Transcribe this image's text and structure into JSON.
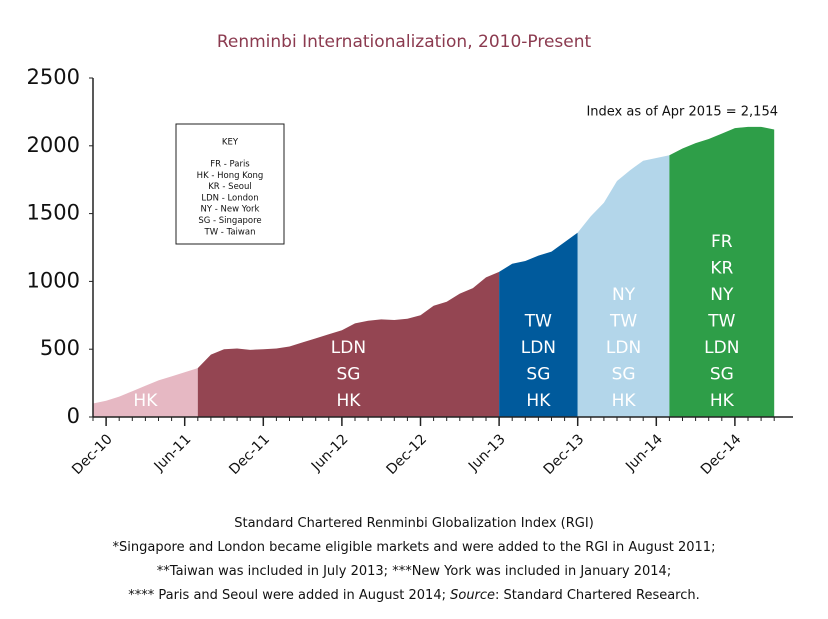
{
  "chart_data": {
    "type": "area",
    "title": "Renminbi Internationalization, 2010-Present",
    "annotation": "Index as of Apr 2015 = 2,154",
    "x": [
      "Nov-10",
      "Dec-10",
      "Jan-11",
      "Feb-11",
      "Mar-11",
      "Apr-11",
      "May-11",
      "Jun-11",
      "Jul-11",
      "Aug-11",
      "Sep-11",
      "Oct-11",
      "Nov-11",
      "Dec-11",
      "Jan-12",
      "Feb-12",
      "Mar-12",
      "Apr-12",
      "May-12",
      "Jun-12",
      "Jul-12",
      "Aug-12",
      "Sep-12",
      "Oct-12",
      "Nov-12",
      "Dec-12",
      "Jan-13",
      "Feb-13",
      "Mar-13",
      "Apr-13",
      "May-13",
      "Jun-13",
      "Jul-13",
      "Aug-13",
      "Sep-13",
      "Oct-13",
      "Nov-13",
      "Dec-13",
      "Jan-14",
      "Feb-14",
      "Mar-14",
      "Apr-14",
      "May-14",
      "Jun-14",
      "Jul-14",
      "Aug-14",
      "Sep-14",
      "Oct-14",
      "Nov-14",
      "Dec-14",
      "Jan-15",
      "Feb-15",
      "Mar-15"
    ],
    "xticks": [
      "Dec-10",
      "Jun-11",
      "Dec-11",
      "Jun-12",
      "Dec-12",
      "Jun-13",
      "Dec-13",
      "Jun-14",
      "Dec-14"
    ],
    "ylim": [
      0,
      2500
    ],
    "yticks": [
      0,
      500,
      1000,
      1500,
      2000,
      2500
    ],
    "grid": false,
    "series": [
      {
        "color": "#e6b8c3",
        "labels": [
          "HK"
        ],
        "values": [
          100,
          120,
          150,
          190,
          230,
          270,
          300,
          330,
          360,
          null,
          null,
          null,
          null,
          null,
          null,
          null,
          null,
          null,
          null,
          null,
          null,
          null,
          null,
          null,
          null,
          null,
          null,
          null,
          null,
          null,
          null,
          null,
          null,
          null,
          null,
          null,
          null,
          null,
          null,
          null,
          null,
          null,
          null,
          null,
          null,
          null,
          null,
          null,
          null,
          null,
          null,
          null,
          null
        ]
      },
      {
        "color": "#944552",
        "labels": [
          "LDN",
          "SG",
          "HK"
        ],
        "values": [
          null,
          null,
          null,
          null,
          null,
          null,
          null,
          null,
          360,
          460,
          500,
          505,
          495,
          500,
          505,
          520,
          550,
          580,
          610,
          640,
          690,
          710,
          720,
          715,
          725,
          750,
          820,
          850,
          910,
          950,
          1030,
          1070,
          null,
          null,
          null,
          null,
          null,
          null,
          null,
          null,
          null,
          null,
          null,
          null,
          null,
          null,
          null,
          null,
          null,
          null,
          null,
          null,
          null
        ]
      },
      {
        "color": "#005a9c",
        "labels": [
          "TW",
          "LDN",
          "SG",
          "HK"
        ],
        "values": [
          null,
          null,
          null,
          null,
          null,
          null,
          null,
          null,
          null,
          null,
          null,
          null,
          null,
          null,
          null,
          null,
          null,
          null,
          null,
          null,
          null,
          null,
          null,
          null,
          null,
          null,
          null,
          null,
          null,
          null,
          null,
          1070,
          1130,
          1150,
          1190,
          1220,
          1290,
          1360,
          null,
          null,
          null,
          null,
          null,
          null,
          null,
          null,
          null,
          null,
          null,
          null,
          null,
          null,
          null
        ]
      },
      {
        "color": "#b3d6ea",
        "labels": [
          "NY",
          "TW",
          "LDN",
          "SG",
          "HK"
        ],
        "values": [
          null,
          null,
          null,
          null,
          null,
          null,
          null,
          null,
          null,
          null,
          null,
          null,
          null,
          null,
          null,
          null,
          null,
          null,
          null,
          null,
          null,
          null,
          null,
          null,
          null,
          null,
          null,
          null,
          null,
          null,
          null,
          null,
          null,
          null,
          null,
          null,
          null,
          1360,
          1480,
          1580,
          1740,
          1820,
          1890,
          1910,
          1930,
          null,
          null,
          null,
          null,
          null,
          null,
          null,
          null
        ]
      },
      {
        "color": "#2e9e48",
        "labels": [
          "FR",
          "KR",
          "NY",
          "TW",
          "LDN",
          "SG",
          "HK"
        ],
        "values": [
          null,
          null,
          null,
          null,
          null,
          null,
          null,
          null,
          null,
          null,
          null,
          null,
          null,
          null,
          null,
          null,
          null,
          null,
          null,
          null,
          null,
          null,
          null,
          null,
          null,
          null,
          null,
          null,
          null,
          null,
          null,
          null,
          null,
          null,
          null,
          null,
          null,
          null,
          null,
          null,
          null,
          null,
          null,
          null,
          1930,
          1980,
          2020,
          2050,
          2090,
          2130,
          2140,
          2140,
          2120
        ]
      }
    ],
    "key": {
      "title": "KEY",
      "items": [
        "FR - Paris",
        "HK - Hong Kong",
        "KR - Seoul",
        "LDN - London",
        "NY - New York",
        "SG - Singapore",
        "TW - Taiwan"
      ]
    },
    "footnote": {
      "lines": [
        "Standard Chartered Renminbi Globalization Index (RGI)",
        "*Singapore and London became eligible markets and were added to the RGI in August 2011;",
        "**Taiwan was included in July 2013; ***New York was included in January 2014;"
      ],
      "last": [
        "**** Paris and Seoul were added in August 2014; ",
        "Source",
        ": Standard Chartered Research."
      ]
    }
  }
}
